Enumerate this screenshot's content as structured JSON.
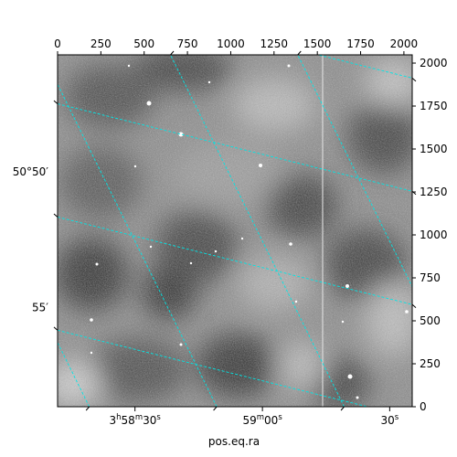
{
  "chart_data": {
    "type": "image",
    "colormap": "gray",
    "xlabel": "pos.eq.ra",
    "pixel_axis_top": {
      "ticks": [
        0,
        250,
        500,
        750,
        1000,
        1250,
        1500,
        1750,
        2000
      ],
      "tick_labels": [
        "0",
        "250",
        "500",
        "750",
        "1000",
        "1250",
        "1500",
        "1750",
        "2000"
      ],
      "xlim": [
        0,
        2048
      ]
    },
    "pixel_axis_right": {
      "ticks": [
        0,
        250,
        500,
        750,
        1000,
        1250,
        1500,
        1750,
        2000
      ],
      "tick_labels": [
        "0",
        "250",
        "500",
        "750",
        "1000",
        "1250",
        "1500",
        "1750",
        "2000"
      ],
      "ylim": [
        0,
        2048
      ]
    },
    "world_axis_bottom": {
      "ticks": [
        {
          "pixel": 447,
          "label": "3h58m30s"
        },
        {
          "pixel": 1183,
          "label": "59m00s"
        },
        {
          "pixel": 1918,
          "label": "30s"
        }
      ]
    },
    "world_axis_left": {
      "ticks": [
        {
          "pixel": 1367,
          "label": "50°50′"
        },
        {
          "pixel": 577,
          "label": "55′"
        }
      ]
    },
    "grid": {
      "on": true,
      "color": "#00e5e5",
      "ra_lines": [
        {
          "x_bottom": 183,
          "x_top": -820
        },
        {
          "x_bottom": 919,
          "x_top": -84
        },
        {
          "x_bottom": 1655,
          "x_top": 652
        },
        {
          "x_bottom": 2390,
          "x_top": 1387
        },
        {
          "x_bottom": 3126,
          "x_top": 2123
        }
      ],
      "dec_lines": [
        {
          "y_left": 1763,
          "y_right": 1254
        },
        {
          "y_left": 1104,
          "y_right": 595
        },
        {
          "y_left": 445,
          "y_right": -64
        },
        {
          "y_left": 2422,
          "y_right": 1913
        }
      ]
    }
  }
}
